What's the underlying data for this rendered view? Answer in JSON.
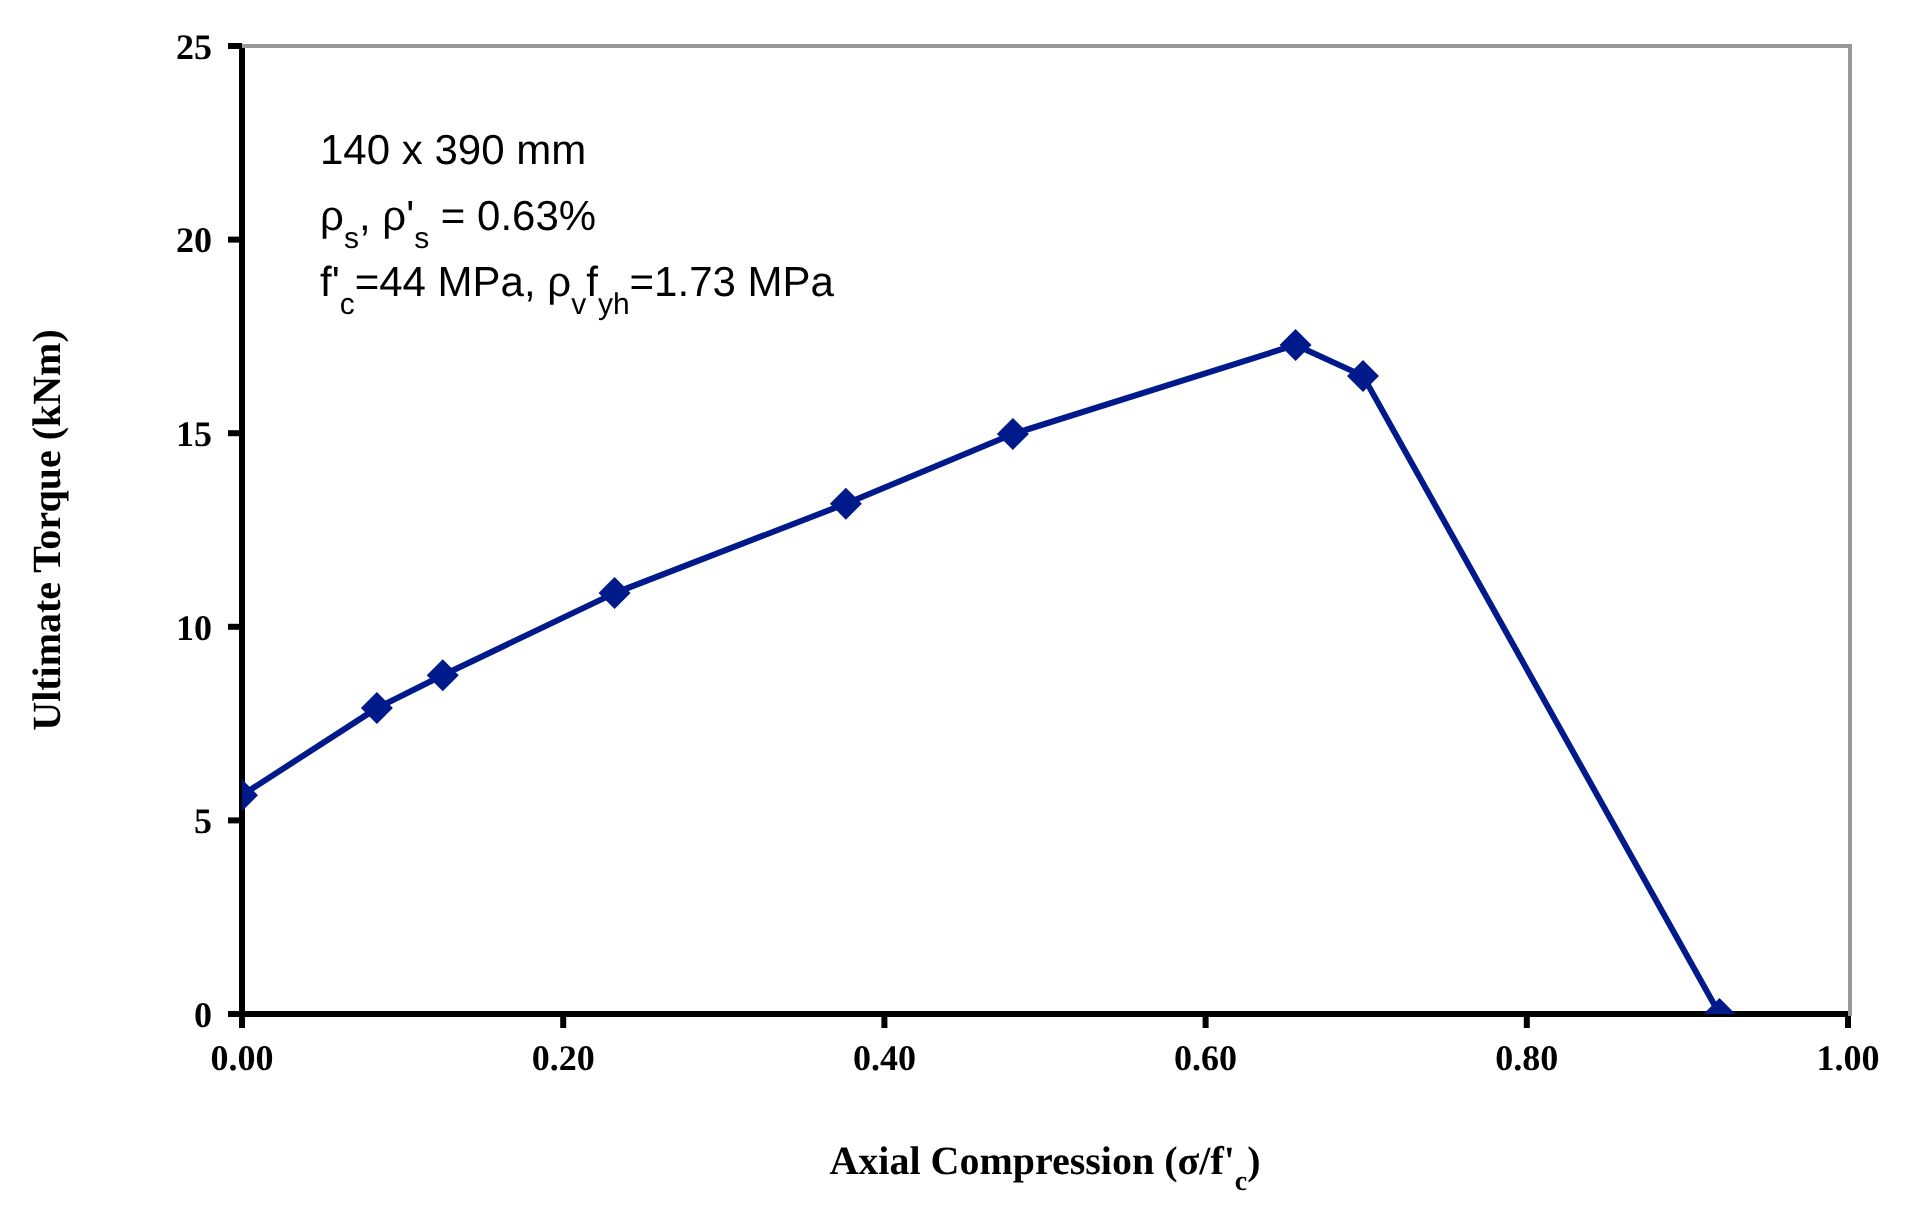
{
  "chart_data": {
    "type": "line",
    "xlabel": "Axial Compression (σ/f'$_{c}$)",
    "ylabel": "Ultimate Torque (kNm)",
    "x": [
      0,
      0.084,
      0.125,
      0.232,
      0.376,
      0.48,
      0.656,
      0.698,
      0.92
    ],
    "series": [
      {
        "color": "#001a8c",
        "values": [
          5.65,
          7.9,
          8.75,
          10.87,
          13.18,
          14.98,
          17.28,
          16.48,
          0
        ]
      }
    ],
    "xlim": [
      0,
      1
    ],
    "xticks": [
      {
        "value": 0,
        "label": "0.00"
      },
      {
        "value": 0.2,
        "label": "0.20"
      },
      {
        "value": 0.4,
        "label": "0.40"
      },
      {
        "value": 0.6,
        "label": "0.60"
      },
      {
        "value": 0.8,
        "label": "0.80"
      },
      {
        "value": 1,
        "label": "1.00"
      }
    ],
    "ylim": [
      0,
      25
    ],
    "yticks": [
      0,
      5,
      10,
      15,
      20,
      25
    ],
    "annotations": [
      "140 x 390  mm",
      "ρ$_{s}$, ρ'$_{s}$ = 0.63%",
      "f'$_{c}$=44 MPa, ρ$_{v}$f$_{yh}$=1.73 MPa"
    ],
    "grid": false,
    "legend": false,
    "marker": "diamond",
    "line_style": "solid"
  }
}
